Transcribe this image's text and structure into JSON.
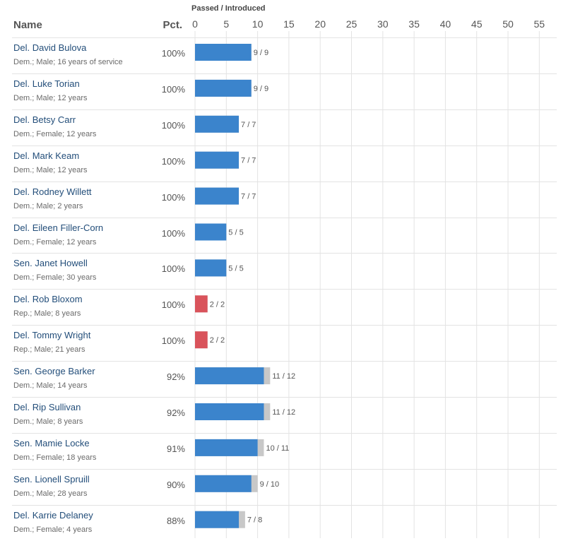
{
  "header": {
    "name_label": "Name",
    "pct_label": "Pct.",
    "axis_title": "Passed / Introduced"
  },
  "colors": {
    "democrat": "#3b84cc",
    "republican": "#d9535b",
    "introduced": "#c8c8c8",
    "grid": "#e3e3e3"
  },
  "chart_data": {
    "type": "bar",
    "orientation": "horizontal",
    "stacked": "overlaid",
    "title": "Passed / Introduced",
    "xlim": [
      0,
      57
    ],
    "xticks": [
      0,
      5,
      10,
      15,
      20,
      25,
      30,
      35,
      40,
      45,
      50,
      55
    ],
    "grid": true,
    "series": [
      {
        "name": "Passed",
        "values": [
          9,
          9,
          7,
          7,
          7,
          5,
          5,
          2,
          2,
          11,
          11,
          10,
          9,
          7
        ]
      },
      {
        "name": "Introduced",
        "values": [
          9,
          9,
          7,
          7,
          7,
          5,
          5,
          2,
          2,
          12,
          12,
          11,
          10,
          8
        ]
      }
    ],
    "rows": [
      {
        "name": "Del. David Bulova",
        "details": "Dem.; Male; 16 years of service",
        "pct": "100%",
        "passed": 9,
        "introduced": 9,
        "label": "9 / 9",
        "party": "democrat"
      },
      {
        "name": "Del. Luke Torian",
        "details": "Dem.; Male; 12 years",
        "pct": "100%",
        "passed": 9,
        "introduced": 9,
        "label": "9 / 9",
        "party": "democrat"
      },
      {
        "name": "Del. Betsy Carr",
        "details": "Dem.; Female; 12 years",
        "pct": "100%",
        "passed": 7,
        "introduced": 7,
        "label": "7 / 7",
        "party": "democrat"
      },
      {
        "name": "Del. Mark Keam",
        "details": "Dem.; Male; 12 years",
        "pct": "100%",
        "passed": 7,
        "introduced": 7,
        "label": "7 / 7",
        "party": "democrat"
      },
      {
        "name": "Del. Rodney Willett",
        "details": "Dem.; Male; 2 years",
        "pct": "100%",
        "passed": 7,
        "introduced": 7,
        "label": "7 / 7",
        "party": "democrat"
      },
      {
        "name": "Del. Eileen Filler-Corn",
        "details": "Dem.; Female; 12 years",
        "pct": "100%",
        "passed": 5,
        "introduced": 5,
        "label": "5 / 5",
        "party": "democrat"
      },
      {
        "name": "Sen. Janet Howell",
        "details": "Dem.; Female; 30 years",
        "pct": "100%",
        "passed": 5,
        "introduced": 5,
        "label": "5 / 5",
        "party": "democrat"
      },
      {
        "name": "Del. Rob Bloxom",
        "details": "Rep.; Male; 8 years",
        "pct": "100%",
        "passed": 2,
        "introduced": 2,
        "label": "2 / 2",
        "party": "republican"
      },
      {
        "name": "Del. Tommy Wright",
        "details": "Rep.; Male; 21 years",
        "pct": "100%",
        "passed": 2,
        "introduced": 2,
        "label": "2 / 2",
        "party": "republican"
      },
      {
        "name": "Sen. George Barker",
        "details": "Dem.; Male; 14 years",
        "pct": "92%",
        "passed": 11,
        "introduced": 12,
        "label": "11 / 12",
        "party": "democrat"
      },
      {
        "name": "Del. Rip Sullivan",
        "details": "Dem.; Male; 8 years",
        "pct": "92%",
        "passed": 11,
        "introduced": 12,
        "label": "11 / 12",
        "party": "democrat"
      },
      {
        "name": "Sen. Mamie Locke",
        "details": "Dem.; Female; 18 years",
        "pct": "91%",
        "passed": 10,
        "introduced": 11,
        "label": "10 / 11",
        "party": "democrat"
      },
      {
        "name": "Sen. Lionell Spruill",
        "details": "Dem.; Male; 28 years",
        "pct": "90%",
        "passed": 9,
        "introduced": 10,
        "label": "9 / 10",
        "party": "democrat"
      },
      {
        "name": "Del. Karrie Delaney",
        "details": "Dem.; Female; 4 years",
        "pct": "88%",
        "passed": 7,
        "introduced": 8,
        "label": "7 / 8",
        "party": "democrat"
      }
    ]
  }
}
